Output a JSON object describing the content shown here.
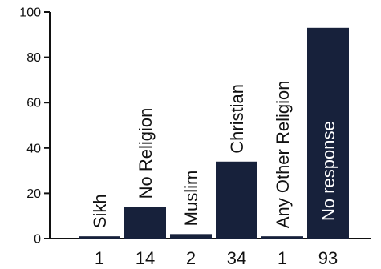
{
  "chart_data": {
    "type": "bar",
    "title": "",
    "xlabel": "",
    "ylabel": "",
    "categories": [
      "Sikh",
      "No Religion",
      "Muslim",
      "Christian",
      "Any Other Religion",
      "No response"
    ],
    "values": [
      1,
      14,
      2,
      34,
      1,
      93
    ],
    "value_labels": [
      "1",
      "14",
      "2",
      "34",
      "1",
      "93"
    ],
    "ylim": [
      0,
      100
    ],
    "yticks": [
      0,
      20,
      40,
      60,
      80,
      100
    ],
    "ytick_labels": [
      "0",
      "20",
      "40",
      "60",
      "80",
      "100"
    ],
    "grid": false,
    "legend": "none",
    "category_label_placement": "vertical, above bar; inside bar when bar is tall",
    "colors": {
      "bar": "#17213b",
      "axis": "#111111",
      "text_dark": "#111111",
      "text_on_bar": "#ffffff"
    }
  }
}
